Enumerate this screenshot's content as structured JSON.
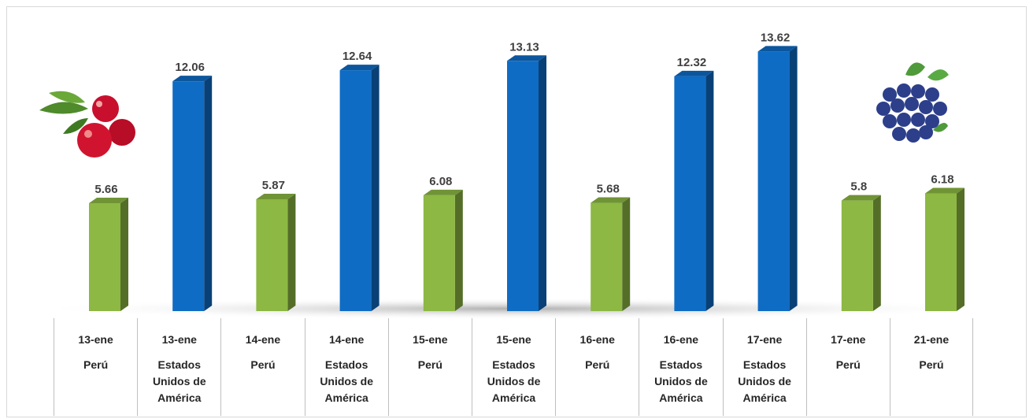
{
  "chart_data": {
    "type": "bar",
    "categories": [
      "13-ene",
      "13-ene",
      "14-ene",
      "14-ene",
      "15-ene",
      "15-ene",
      "16-ene",
      "16-ene",
      "17-ene",
      "17-ene",
      "21-ene"
    ],
    "countries": [
      "Perú",
      "Estados Unidos de América",
      "Perú",
      "Estados Unidos de América",
      "Perú",
      "Estados Unidos de América",
      "Perú",
      "Estados Unidos de América",
      "Estados Unidos de América",
      "Perú",
      "Perú"
    ],
    "values": [
      5.66,
      12.06,
      5.87,
      12.64,
      6.08,
      13.13,
      5.68,
      12.32,
      13.62,
      5.8,
      6.18
    ],
    "colors": [
      "#8cb843",
      "#0f6cc4",
      "#8cb843",
      "#0f6cc4",
      "#8cb843",
      "#0f6cc4",
      "#8cb843",
      "#0f6cc4",
      "#0f6cc4",
      "#8cb843",
      "#8cb843"
    ]
  }
}
